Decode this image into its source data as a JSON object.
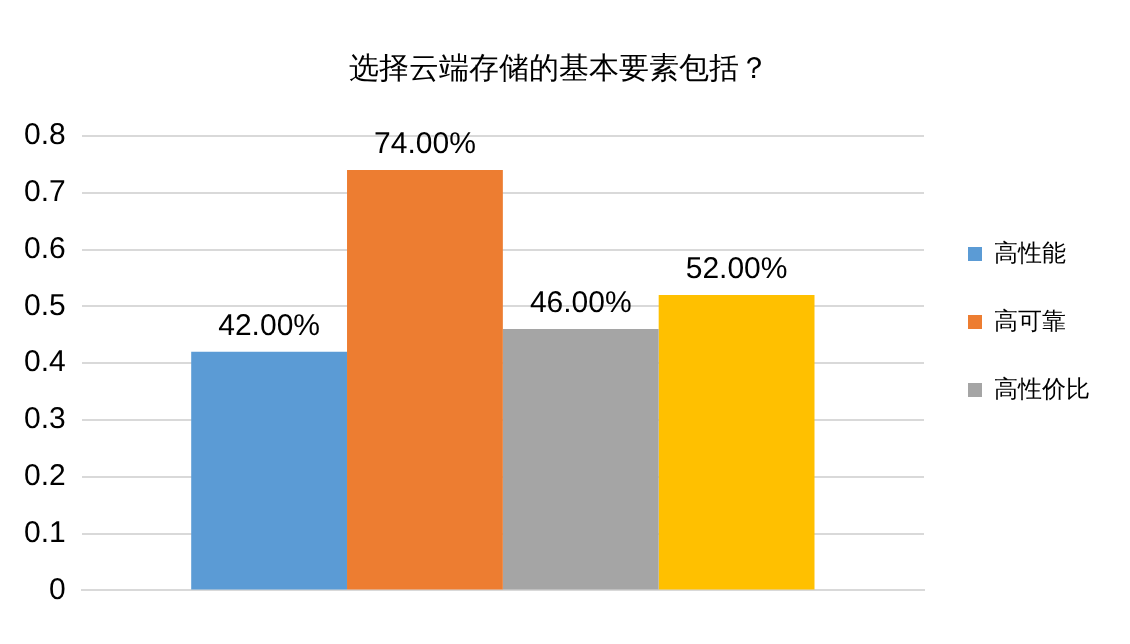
{
  "chart_data": {
    "type": "bar",
    "title": "选择云端存储的基本要素包括？",
    "categories": [
      null
    ],
    "series": [
      {
        "name": "高性能",
        "color": "#5b9bd5",
        "values": [
          0.42
        ],
        "value_labels": [
          "42.00%"
        ]
      },
      {
        "name": "高可靠",
        "color": "#ed7d31",
        "values": [
          0.74
        ],
        "value_labels": [
          "74.00%"
        ]
      },
      {
        "name": "高性价比",
        "color": "#a5a5a5",
        "values": [
          0.46
        ],
        "value_labels": [
          "46.00%"
        ]
      },
      {
        "color": "#ffc000",
        "values": [
          0.52
        ],
        "value_labels": [
          "52.00%"
        ]
      }
    ],
    "ylim": [
      0,
      0.8
    ],
    "yticks": [
      0,
      0.1,
      0.2,
      0.3,
      0.4,
      0.5,
      0.6,
      0.7,
      0.8
    ],
    "grid": "y",
    "legend": "right"
  }
}
